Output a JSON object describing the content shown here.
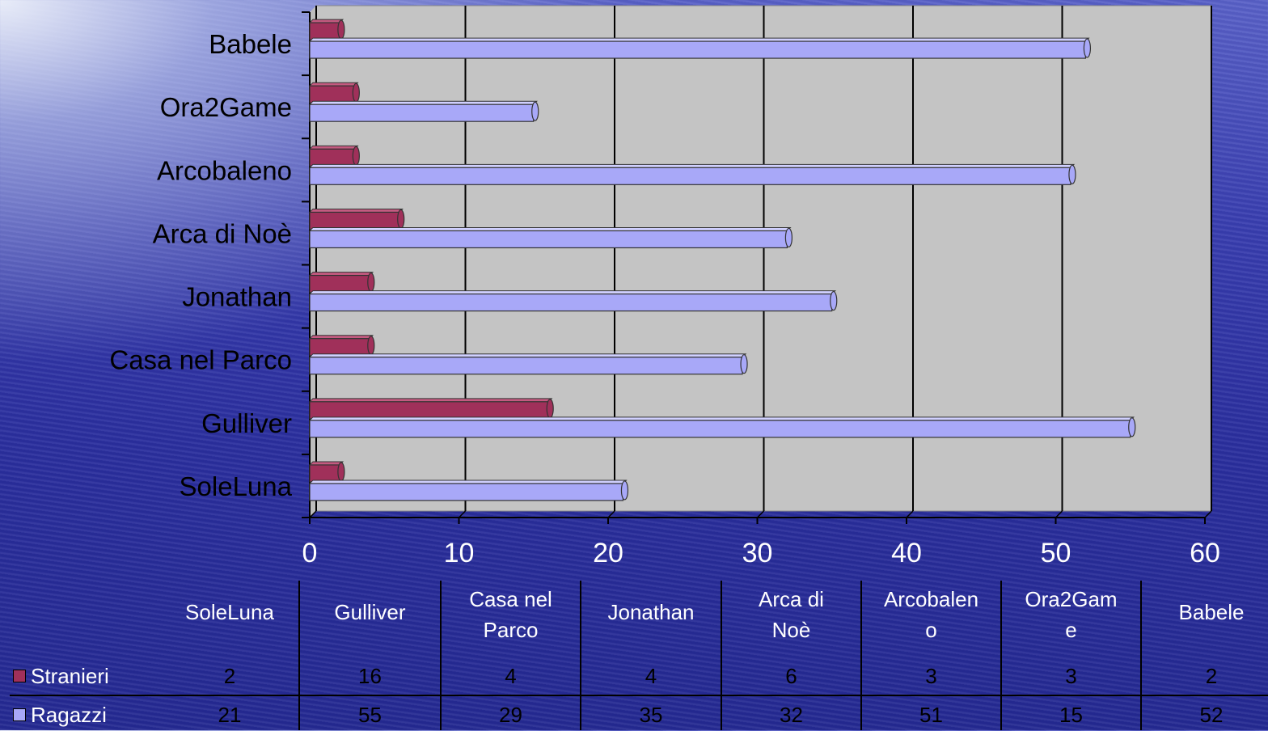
{
  "chart_data": {
    "type": "bar",
    "orientation": "horizontal",
    "categories": [
      "SoleLuna",
      "Gulliver",
      "Casa nel Parco",
      "Jonathan",
      "Arca di Noè",
      "Arcobaleno",
      "Ora2Game",
      "Babele"
    ],
    "series": [
      {
        "name": "Stranieri",
        "values": [
          2,
          16,
          4,
          4,
          6,
          3,
          3,
          2
        ],
        "color": "#a0305a"
      },
      {
        "name": "Ragazzi",
        "values": [
          21,
          55,
          29,
          35,
          32,
          51,
          15,
          52
        ],
        "color": "#a8a8f8"
      }
    ],
    "xlim": [
      0,
      60
    ],
    "xticks": [
      0,
      10,
      20,
      30,
      40,
      50,
      60
    ],
    "grid": true,
    "data_table": {
      "headers": [
        "SoleLuna",
        "Gulliver",
        "Casa nel\nParco",
        "Jonathan",
        "Arca di\nNoè",
        "Arcobalen\no",
        "Ora2Gam\ne",
        "Babele"
      ],
      "rows": [
        {
          "label": "Stranieri",
          "values": [
            "2",
            "16",
            "4",
            "4",
            "6",
            "3",
            "3",
            "2"
          ]
        },
        {
          "label": "Ragazzi",
          "values": [
            "21",
            "55",
            "29",
            "35",
            "32",
            "51",
            "15",
            "52"
          ]
        }
      ]
    }
  },
  "colors": {
    "plot_bg": "#c0c0c0",
    "grid": "#000000",
    "text": "#ffffff"
  }
}
